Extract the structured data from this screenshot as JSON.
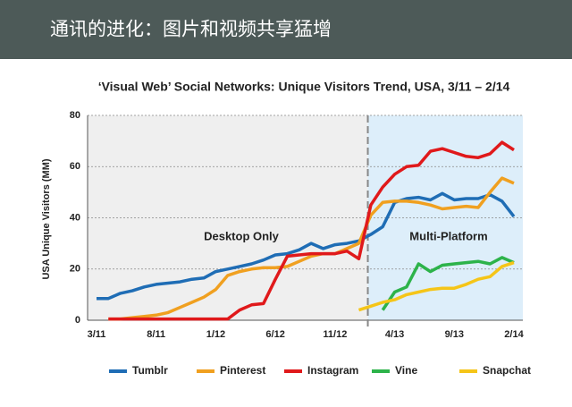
{
  "header": {
    "title": "通讯的进化：图片和视频共享猛增"
  },
  "chart_data": {
    "type": "line",
    "title": "‘Visual Web’ Social Networks: Unique Visitors Trend, USA, 3/11 – 2/14",
    "y_label": "USA Unique Visitors (MM)",
    "annotations": [
      "Desktop Only",
      "Multi-Platform"
    ],
    "categories": [
      "3/11",
      null,
      null,
      null,
      null,
      "8/11",
      null,
      null,
      null,
      null,
      "1/12",
      null,
      null,
      null,
      null,
      "6/12",
      null,
      null,
      null,
      null,
      "11/12",
      null,
      null,
      null,
      null,
      "4/13",
      null,
      null,
      null,
      null,
      "9/13",
      null,
      null,
      null,
      null,
      "2/14"
    ],
    "ylim": [
      0,
      80
    ],
    "yticks": [
      0,
      20,
      40,
      60,
      80
    ],
    "grid": true,
    "series": [
      {
        "name": "Tumblr",
        "color": "#1f6db5",
        "values": [
          8.5,
          8.5,
          10.5,
          11.5,
          13,
          14,
          14.5,
          15,
          16,
          16.5,
          19,
          20,
          21,
          22,
          23.5,
          25.5,
          26,
          27.5,
          30,
          28,
          29.5,
          30,
          31,
          33.5,
          36.5,
          46,
          47.5,
          48,
          47,
          49.5,
          47,
          47.5,
          47.5,
          49,
          46.5,
          40.5
        ]
      },
      {
        "name": "Pinterest",
        "color": "#f0a020",
        "values": [
          null,
          0.5,
          0.5,
          1,
          1.5,
          2,
          3,
          5,
          7,
          9,
          12,
          17.5,
          19,
          20,
          20.5,
          20.5,
          21,
          23,
          25,
          26,
          26,
          28,
          30,
          41,
          46,
          46.5,
          46.5,
          46,
          45,
          43.5,
          44,
          44.5,
          44,
          50,
          55.5,
          53.5
        ]
      },
      {
        "name": "Instagram",
        "color": "#e0191b",
        "values": [
          null,
          0.5,
          0.5,
          0.5,
          0.5,
          0.5,
          0.5,
          0.5,
          0.5,
          0.5,
          0.5,
          0.5,
          4,
          6,
          6.5,
          16,
          25,
          25.5,
          26,
          26,
          26,
          27,
          24,
          45,
          52,
          57,
          60,
          60.5,
          66,
          67,
          65.5,
          64,
          63.5,
          65,
          69.5,
          66.5
        ]
      },
      {
        "name": "Vine",
        "color": "#2db34a",
        "values": [
          null,
          null,
          null,
          null,
          null,
          null,
          null,
          null,
          null,
          null,
          null,
          null,
          null,
          null,
          null,
          null,
          null,
          null,
          null,
          null,
          null,
          null,
          null,
          null,
          4,
          11,
          13,
          22,
          19,
          21.5,
          22,
          22.5,
          23,
          22,
          24.5,
          22.5
        ]
      },
      {
        "name": "Snapchat",
        "color": "#f5c518",
        "values": [
          null,
          null,
          null,
          null,
          null,
          null,
          null,
          null,
          null,
          null,
          null,
          null,
          null,
          null,
          null,
          null,
          null,
          null,
          null,
          null,
          null,
          null,
          4,
          5.5,
          7,
          8,
          10,
          11,
          12,
          12.5,
          12.5,
          14,
          16,
          17,
          21,
          22.5
        ]
      }
    ]
  }
}
